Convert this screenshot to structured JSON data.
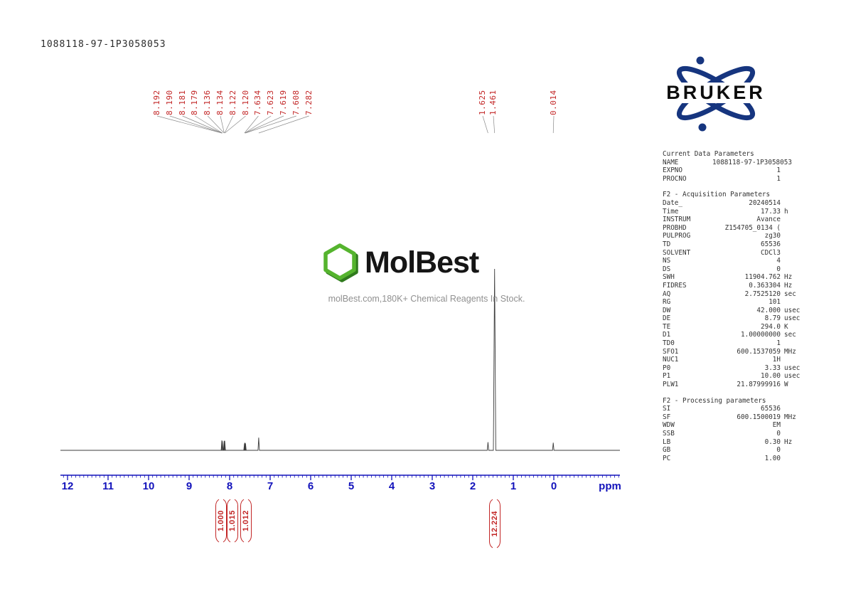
{
  "sample_id": "1088118-97-1P3058053",
  "logo": {
    "brand": "BRUKER"
  },
  "watermark": {
    "name": "MolBest",
    "tagline": "molBest.com,180K+ Chemical Reagents In Stock."
  },
  "axis": {
    "ticks": [
      "12",
      "11",
      "10",
      "9",
      "8",
      "7",
      "6",
      "5",
      "4",
      "3",
      "2",
      "1",
      "0"
    ],
    "unit": "ppm"
  },
  "peak_labels": {
    "groups": [
      {
        "labels": [
          "8.192",
          "8.190",
          "8.181",
          "8.179",
          "8.136",
          "8.134",
          "8.122",
          "8.120",
          "7.634",
          "7.623",
          "7.619",
          "7.608",
          "7.282"
        ]
      },
      {
        "labels": [
          "1.625",
          "1.461"
        ]
      },
      {
        "labels": [
          "0.014"
        ]
      }
    ]
  },
  "params": {
    "sections": [
      {
        "title": "Current Data Parameters",
        "rows": [
          [
            "NAME",
            "1088118-97-1P3058053",
            ""
          ],
          [
            "EXPNO",
            "1",
            ""
          ],
          [
            "PROCNO",
            "1",
            ""
          ]
        ]
      },
      {
        "title": "F2 - Acquisition Parameters",
        "rows": [
          [
            "Date_",
            "20240514",
            ""
          ],
          [
            "Time",
            "17.33",
            "h"
          ],
          [
            "INSTRUM",
            "Avance",
            ""
          ],
          [
            "PROBHD",
            "Z154705_0134 (",
            ""
          ],
          [
            "PULPROG",
            "zg30",
            ""
          ],
          [
            "TD",
            "65536",
            ""
          ],
          [
            "SOLVENT",
            "CDCl3",
            ""
          ],
          [
            "NS",
            "4",
            ""
          ],
          [
            "DS",
            "0",
            ""
          ],
          [
            "SWH",
            "11904.762",
            "Hz"
          ],
          [
            "FIDRES",
            "0.363304",
            "Hz"
          ],
          [
            "AQ",
            "2.7525120",
            "sec"
          ],
          [
            "RG",
            "101",
            ""
          ],
          [
            "DW",
            "42.000",
            "usec"
          ],
          [
            "DE",
            "8.79",
            "usec"
          ],
          [
            "TE",
            "294.0",
            "K"
          ],
          [
            "D1",
            "1.00000000",
            "sec"
          ],
          [
            "TD0",
            "1",
            ""
          ],
          [
            "SFO1",
            "600.1537059",
            "MHz"
          ],
          [
            "NUC1",
            "1H",
            ""
          ],
          [
            "P0",
            "3.33",
            "usec"
          ],
          [
            "P1",
            "10.00",
            "usec"
          ],
          [
            "PLW1",
            "21.87999916",
            "W"
          ]
        ]
      },
      {
        "title": "F2 - Processing parameters",
        "rows": [
          [
            "SI",
            "65536",
            ""
          ],
          [
            "SF",
            "600.1500019",
            "MHz"
          ],
          [
            "WDW",
            "EM",
            ""
          ],
          [
            "SSB",
            "0",
            ""
          ],
          [
            "LB",
            "0.30",
            "Hz"
          ],
          [
            "GB",
            "0",
            ""
          ],
          [
            "PC",
            "1.00",
            ""
          ]
        ]
      }
    ]
  },
  "chart_data": {
    "type": "line",
    "title": "1H NMR spectrum 1088118-97-1P3058053",
    "xlabel": "ppm",
    "x_range": [
      12.2,
      -1.6
    ],
    "x_axis_reversed": true,
    "grid": false,
    "peak_list_ppm": [
      8.192,
      8.19,
      8.181,
      8.179,
      8.136,
      8.134,
      8.122,
      8.12,
      7.634,
      7.623,
      7.619,
      7.608,
      7.282,
      1.625,
      1.461,
      0.014
    ],
    "peaks": [
      {
        "ppm": 8.191,
        "intensity": 0.055
      },
      {
        "ppm": 8.18,
        "intensity": 0.05
      },
      {
        "ppm": 8.135,
        "intensity": 0.052
      },
      {
        "ppm": 8.121,
        "intensity": 0.052
      },
      {
        "ppm": 7.634,
        "intensity": 0.038
      },
      {
        "ppm": 7.621,
        "intensity": 0.042
      },
      {
        "ppm": 7.608,
        "intensity": 0.038
      },
      {
        "ppm": 7.282,
        "intensity": 0.07
      },
      {
        "ppm": 1.625,
        "intensity": 0.045
      },
      {
        "ppm": 1.461,
        "intensity": 1.0
      },
      {
        "ppm": 0.014,
        "intensity": 0.042
      }
    ],
    "integrals": [
      {
        "label": "1.000",
        "value": 1.0,
        "region_ppm": [
          8.25,
          8.1
        ]
      },
      {
        "label": "1.015",
        "value": 1.015,
        "region_ppm": [
          8.1,
          7.9
        ]
      },
      {
        "label": "1.012",
        "value": 1.012,
        "region_ppm": [
          7.7,
          7.55
        ]
      },
      {
        "label": "12.224",
        "value": 12.224,
        "region_ppm": [
          1.6,
          1.35
        ]
      }
    ]
  }
}
